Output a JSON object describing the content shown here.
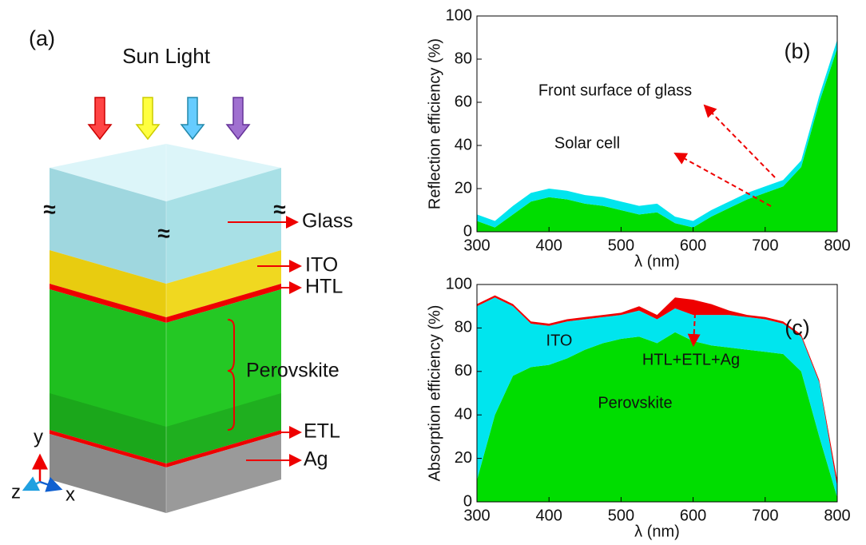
{
  "diagram": {
    "panel_label": "(a)",
    "title": "Sun Light",
    "layers": [
      "Glass",
      "ITO",
      "HTL",
      "Perovskite",
      "ETL",
      "Ag"
    ],
    "axes": [
      "y",
      "z",
      "x"
    ],
    "break_marks": [
      "≈",
      "≈",
      "≈"
    ]
  },
  "chart_data": [
    {
      "type": "area",
      "stacked": true,
      "panel_label": "(b)",
      "y_label": "Reflection efficiency (%)",
      "x_label": "λ (nm)",
      "x": [
        300,
        325,
        350,
        375,
        400,
        425,
        450,
        475,
        500,
        525,
        550,
        575,
        600,
        625,
        650,
        675,
        700,
        725,
        750,
        775,
        800
      ],
      "series": [
        {
          "name": "Solar cell",
          "color": "#00dd00",
          "values": [
            5,
            2,
            8,
            14,
            16,
            15,
            13,
            12,
            10,
            8,
            9,
            4,
            2,
            7,
            11,
            15,
            18,
            21,
            30,
            60,
            85
          ]
        },
        {
          "name": "Front surface of glass",
          "color": "#00e5ee",
          "values": [
            3,
            3,
            4,
            4,
            4,
            4,
            4,
            4,
            4,
            4,
            4,
            3,
            3,
            3,
            3,
            3,
            3,
            3,
            3,
            3,
            4
          ]
        }
      ],
      "xlim": [
        300,
        800
      ],
      "ylim": [
        0,
        100
      ],
      "xticks": [
        300,
        400,
        500,
        600,
        700,
        800
      ],
      "yticks": [
        0,
        20,
        40,
        60,
        80,
        100
      ]
    },
    {
      "type": "area",
      "stacked": true,
      "panel_label": "(c)",
      "y_label": "Absorption efficiency (%)",
      "x_label": "λ (nm)",
      "x": [
        300,
        325,
        350,
        375,
        400,
        425,
        450,
        475,
        500,
        525,
        550,
        575,
        600,
        625,
        650,
        675,
        700,
        725,
        750,
        775,
        800
      ],
      "series": [
        {
          "name": "Perovskite",
          "color": "#00dd00",
          "values": [
            10,
            40,
            58,
            62,
            63,
            66,
            70,
            73,
            75,
            76,
            73,
            78,
            74,
            72,
            71,
            70,
            69,
            68,
            60,
            30,
            2
          ]
        },
        {
          "name": "ITO",
          "color": "#00e5ee",
          "values": [
            80,
            54,
            32,
            20,
            18,
            17,
            14,
            12,
            11,
            12,
            11,
            11,
            12,
            14,
            15,
            15,
            15,
            14,
            16,
            25,
            5
          ]
        },
        {
          "name": "HTL+ETL+Ag",
          "color": "#ee0000",
          "values": [
            1,
            1,
            1,
            1,
            1,
            1,
            1,
            1,
            1,
            2,
            2,
            5,
            7,
            5,
            2,
            1,
            1,
            1,
            1,
            1,
            3
          ]
        }
      ],
      "xlim": [
        300,
        800
      ],
      "ylim": [
        0,
        100
      ],
      "xticks": [
        300,
        400,
        500,
        600,
        700,
        800
      ],
      "yticks": [
        0,
        20,
        40,
        60,
        80,
        100
      ]
    }
  ]
}
